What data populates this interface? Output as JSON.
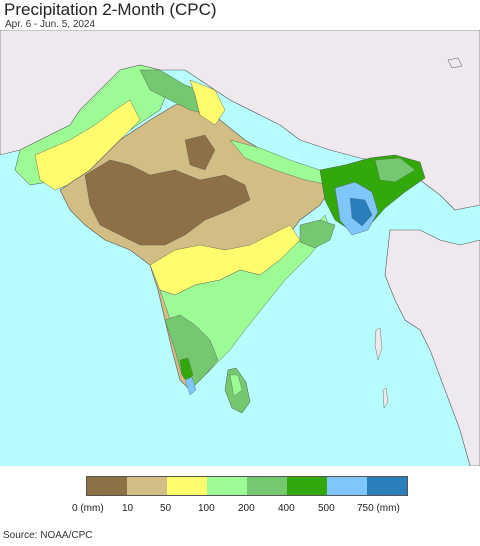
{
  "header": {
    "title": "Precipitation 2-Month (CPC)",
    "subtitle": "Apr. 6 - Jun. 5, 2024"
  },
  "colors": {
    "ocean": "#b8fdfd",
    "land_outside": "#efe9ef",
    "border": "#555555",
    "precip_0_10": "#8d7045",
    "precip_10_50": "#d2bd85",
    "precip_50_100": "#fffd6e",
    "precip_100_200": "#9dfb96",
    "precip_200_400": "#74c86f",
    "precip_400_500": "#32a80b",
    "precip_500_750": "#7ec6fb",
    "precip_750_plus": "#2a7fba"
  },
  "legend": {
    "bins": [
      {
        "color": "#8d7045"
      },
      {
        "color": "#d2bd85"
      },
      {
        "color": "#fffd6e"
      },
      {
        "color": "#9dfb96"
      },
      {
        "color": "#74c86f"
      },
      {
        "color": "#32a80b"
      },
      {
        "color": "#7ec6fb"
      },
      {
        "color": "#2a7fba"
      }
    ],
    "labels": [
      "0 (mm)",
      "10",
      "50",
      "100",
      "200",
      "400",
      "500",
      "750 (mm)"
    ]
  },
  "footer": {
    "source": "Source: NOAA/CPC"
  }
}
